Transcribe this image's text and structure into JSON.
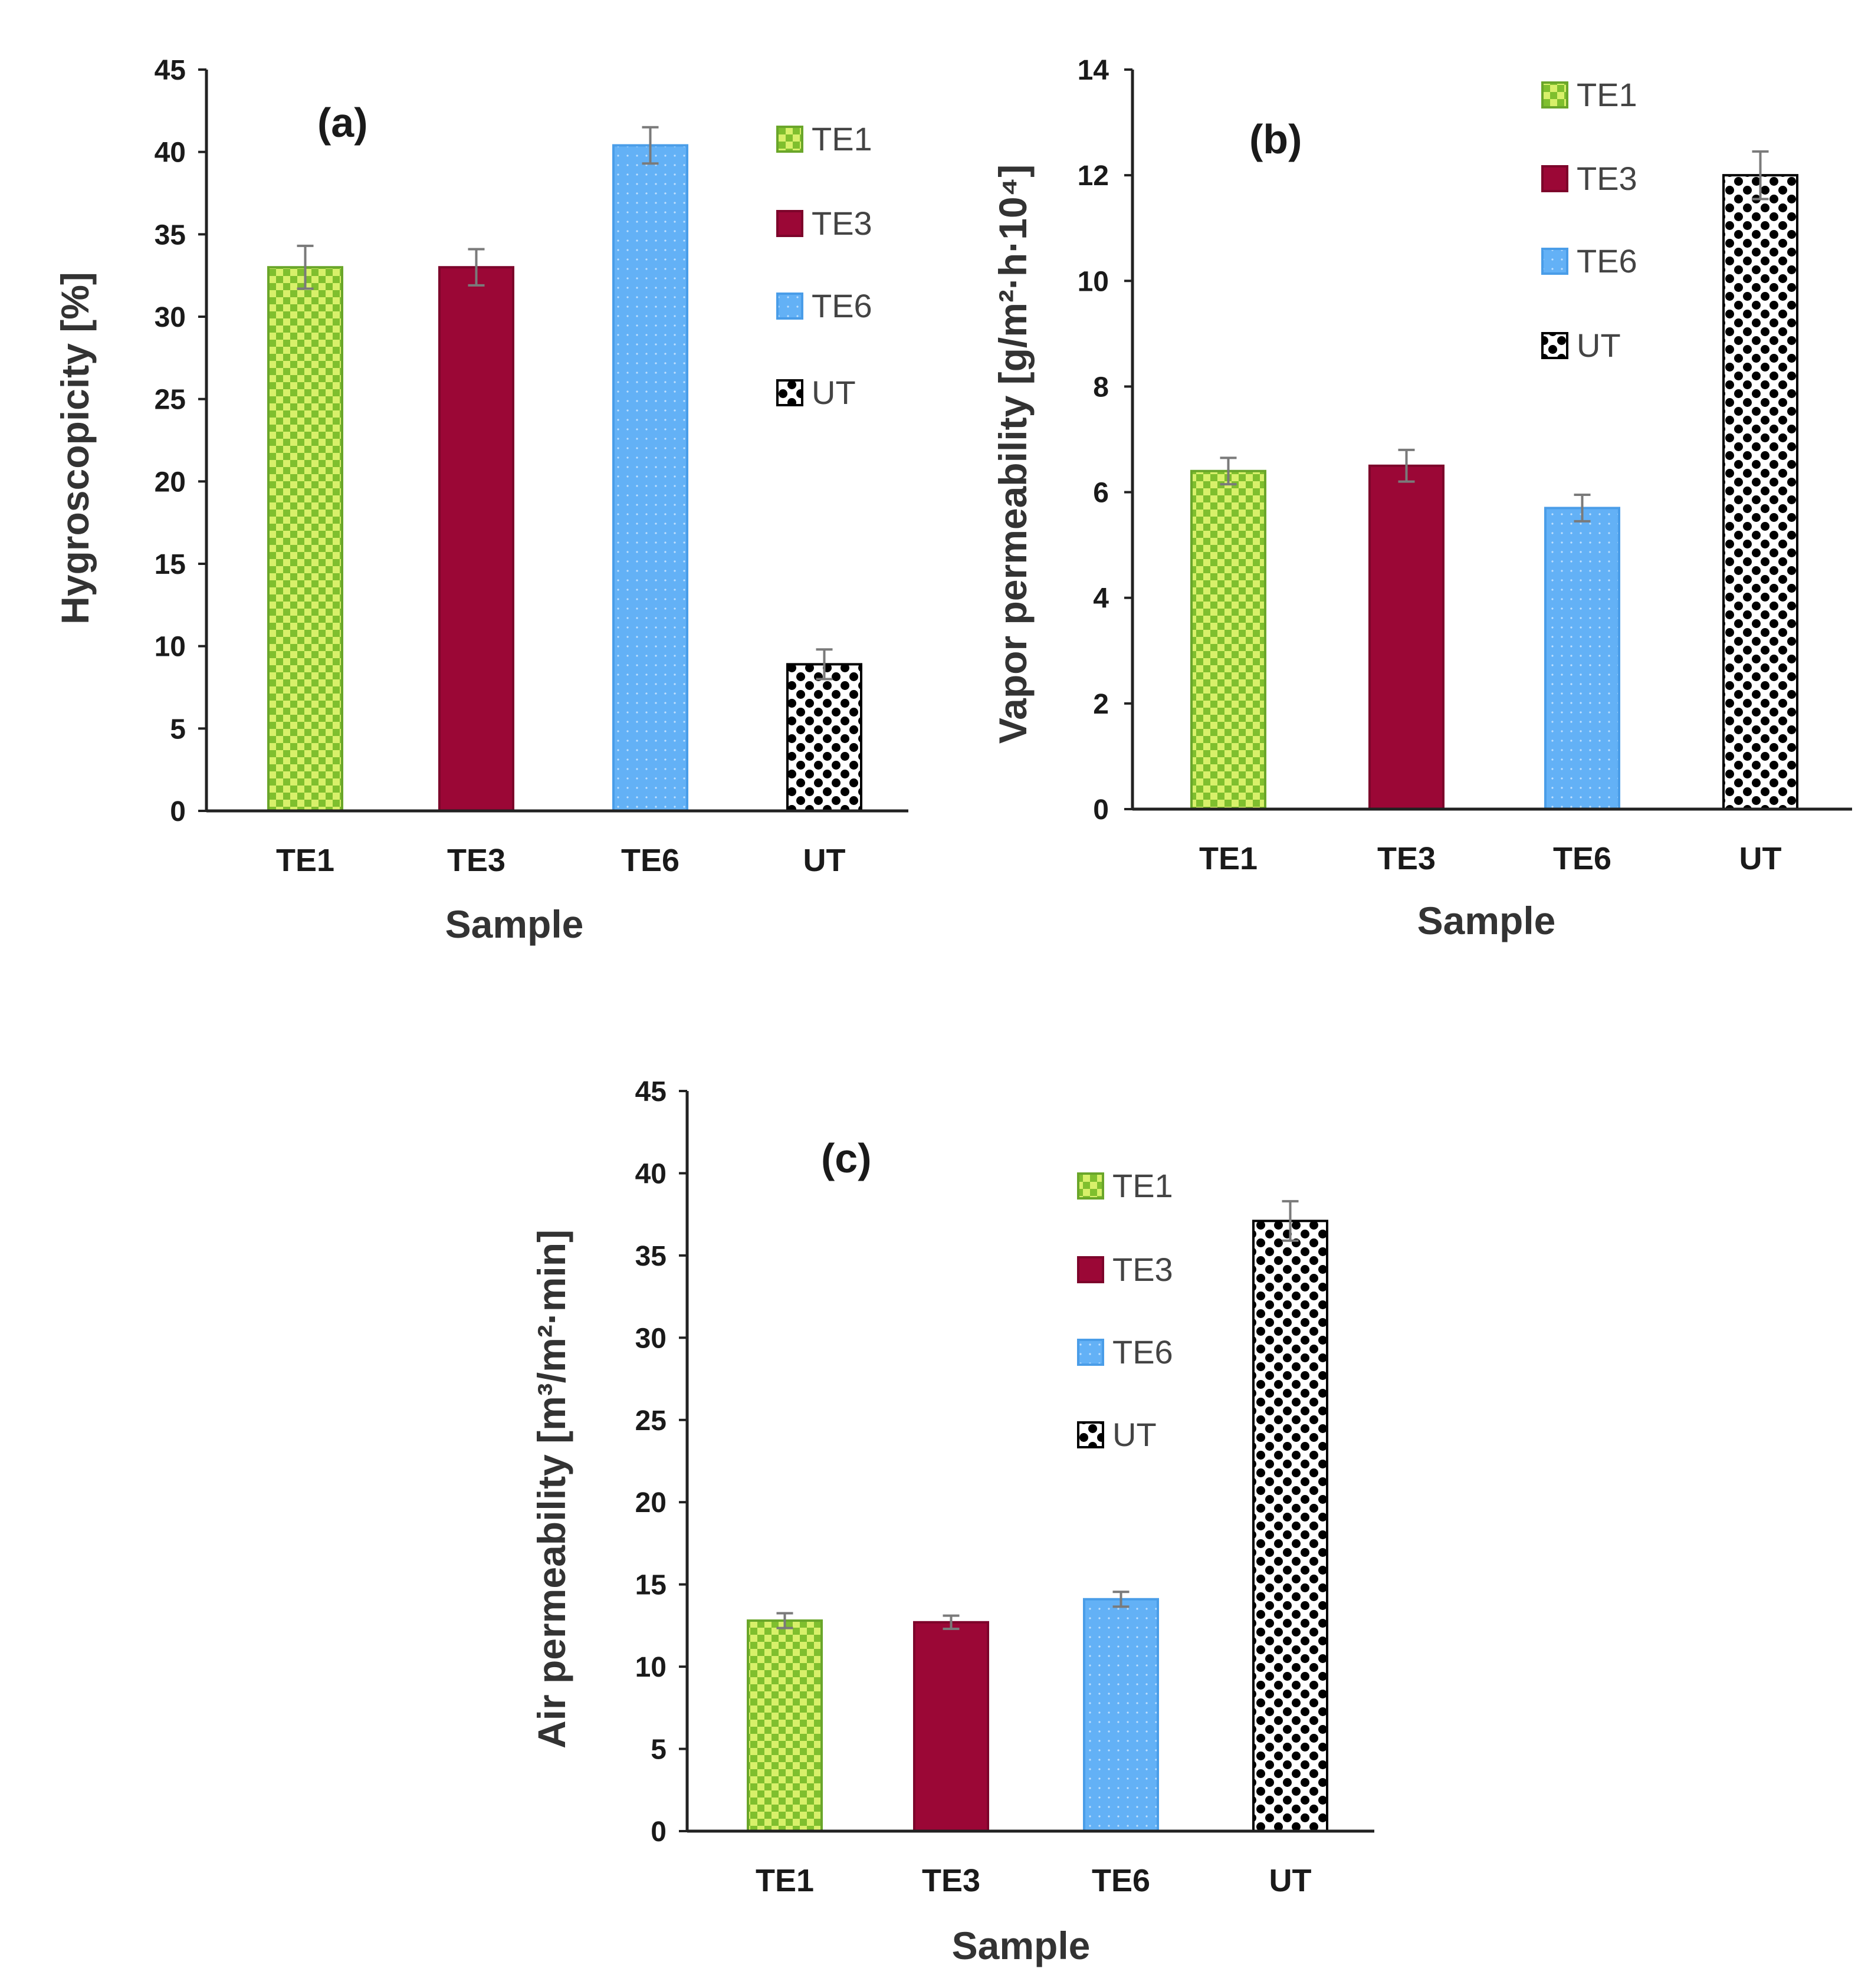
{
  "chart_data": [
    {
      "type": "bar",
      "panel": "(a)",
      "categories": [
        "TE1",
        "TE3",
        "TE6",
        "UT"
      ],
      "values": [
        33.0,
        33.0,
        40.4,
        8.9
      ],
      "errors": [
        1.3,
        1.1,
        1.1,
        0.9
      ],
      "xlabel": "Sample",
      "ylabel": "Hygroscopicity [%]",
      "ylim": [
        0,
        45
      ],
      "yticks": [
        "0",
        "5",
        "10",
        "15",
        "20",
        "25",
        "30",
        "35",
        "40",
        "45"
      ],
      "legend": [
        "TE1",
        "TE3",
        "TE6",
        "UT"
      ]
    },
    {
      "type": "bar",
      "panel": "(b)",
      "categories": [
        "TE1",
        "TE3",
        "TE6",
        "UT"
      ],
      "values": [
        6.4,
        6.5,
        5.7,
        12.0
      ],
      "errors": [
        0.25,
        0.3,
        0.25,
        0.45
      ],
      "xlabel": "Sample",
      "ylabel": "Vapor permeability [g/m²·h·10⁴]",
      "ylim": [
        0,
        14
      ],
      "yticks": [
        "0",
        "2",
        "4",
        "6",
        "8",
        "10",
        "12",
        "14"
      ],
      "legend": [
        "TE1",
        "TE3",
        "TE6",
        "UT"
      ]
    },
    {
      "type": "bar",
      "panel": "(c)",
      "categories": [
        "TE1",
        "TE3",
        "TE6",
        "UT"
      ],
      "values": [
        12.8,
        12.7,
        14.1,
        37.1
      ],
      "errors": [
        0.45,
        0.4,
        0.45,
        1.2
      ],
      "xlabel": "Sample",
      "ylabel": "Air permeability [m³/m²·min]",
      "ylim": [
        0,
        45
      ],
      "yticks": [
        "0",
        "5",
        "10",
        "15",
        "20",
        "25",
        "30",
        "35",
        "40",
        "45"
      ],
      "legend": [
        "TE1",
        "TE3",
        "TE6",
        "UT"
      ]
    }
  ],
  "colors": {
    "TE1": "#99cc33",
    "TE3": "#9b0736",
    "TE6": "#63b1f6",
    "UT": "#000000",
    "axis": "#222222",
    "error_bar": "#7a7a7a"
  }
}
